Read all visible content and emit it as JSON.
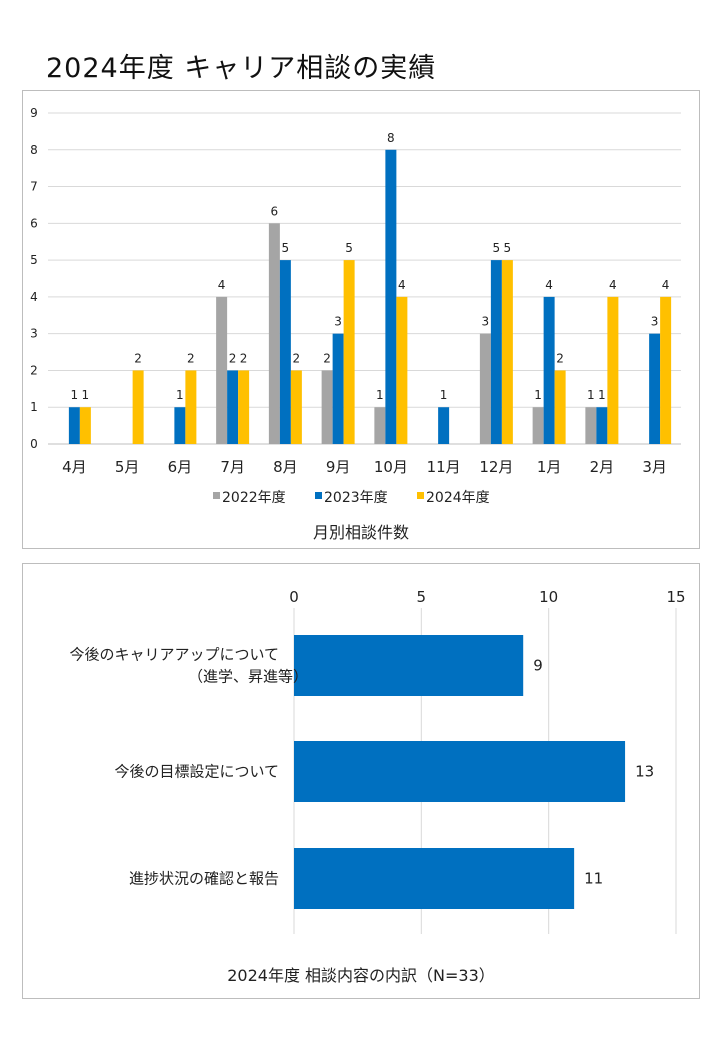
{
  "page_title": "2024年度  キャリア相談の実績",
  "colors": {
    "2022": "#A5A5A5",
    "2023": "#0070C0",
    "2024": "#FFC000",
    "grid": "#d9d9d9"
  },
  "chart_data": [
    {
      "type": "bar",
      "title": "月別相談件数",
      "categories": [
        "4月",
        "5月",
        "6月",
        "7月",
        "8月",
        "9月",
        "10月",
        "11月",
        "12月",
        "1月",
        "2月",
        "3月"
      ],
      "ylim": [
        0,
        9
      ],
      "yticks": [
        "0",
        "1",
        "2",
        "3",
        "4",
        "5",
        "6",
        "7",
        "8",
        "9"
      ],
      "grid": true,
      "legend": "bottom",
      "series": [
        {
          "name": "2022年度",
          "values": [
            null,
            null,
            null,
            4,
            6,
            2,
            1,
            null,
            3,
            1,
            1,
            null
          ]
        },
        {
          "name": "2023年度",
          "values": [
            1,
            null,
            1,
            2,
            5,
            3,
            8,
            1,
            5,
            4,
            1,
            3
          ]
        },
        {
          "name": "2024年度",
          "values": [
            1,
            2,
            2,
            2,
            2,
            5,
            4,
            null,
            5,
            2,
            4,
            4
          ]
        }
      ]
    },
    {
      "type": "bar",
      "orientation": "horizontal",
      "title": "2024年度  相談内容の内訳（N=33）",
      "categories": [
        [
          "今後のキャリアアップについて",
          "（進学、昇進等）"
        ],
        [
          "今後の目標設定について"
        ],
        [
          "進捗状況の確認と報告"
        ]
      ],
      "values": [
        9,
        13,
        11
      ],
      "xlim": [
        0,
        15
      ],
      "xticks": [
        "0",
        "5",
        "10",
        "15"
      ],
      "grid": true
    }
  ]
}
